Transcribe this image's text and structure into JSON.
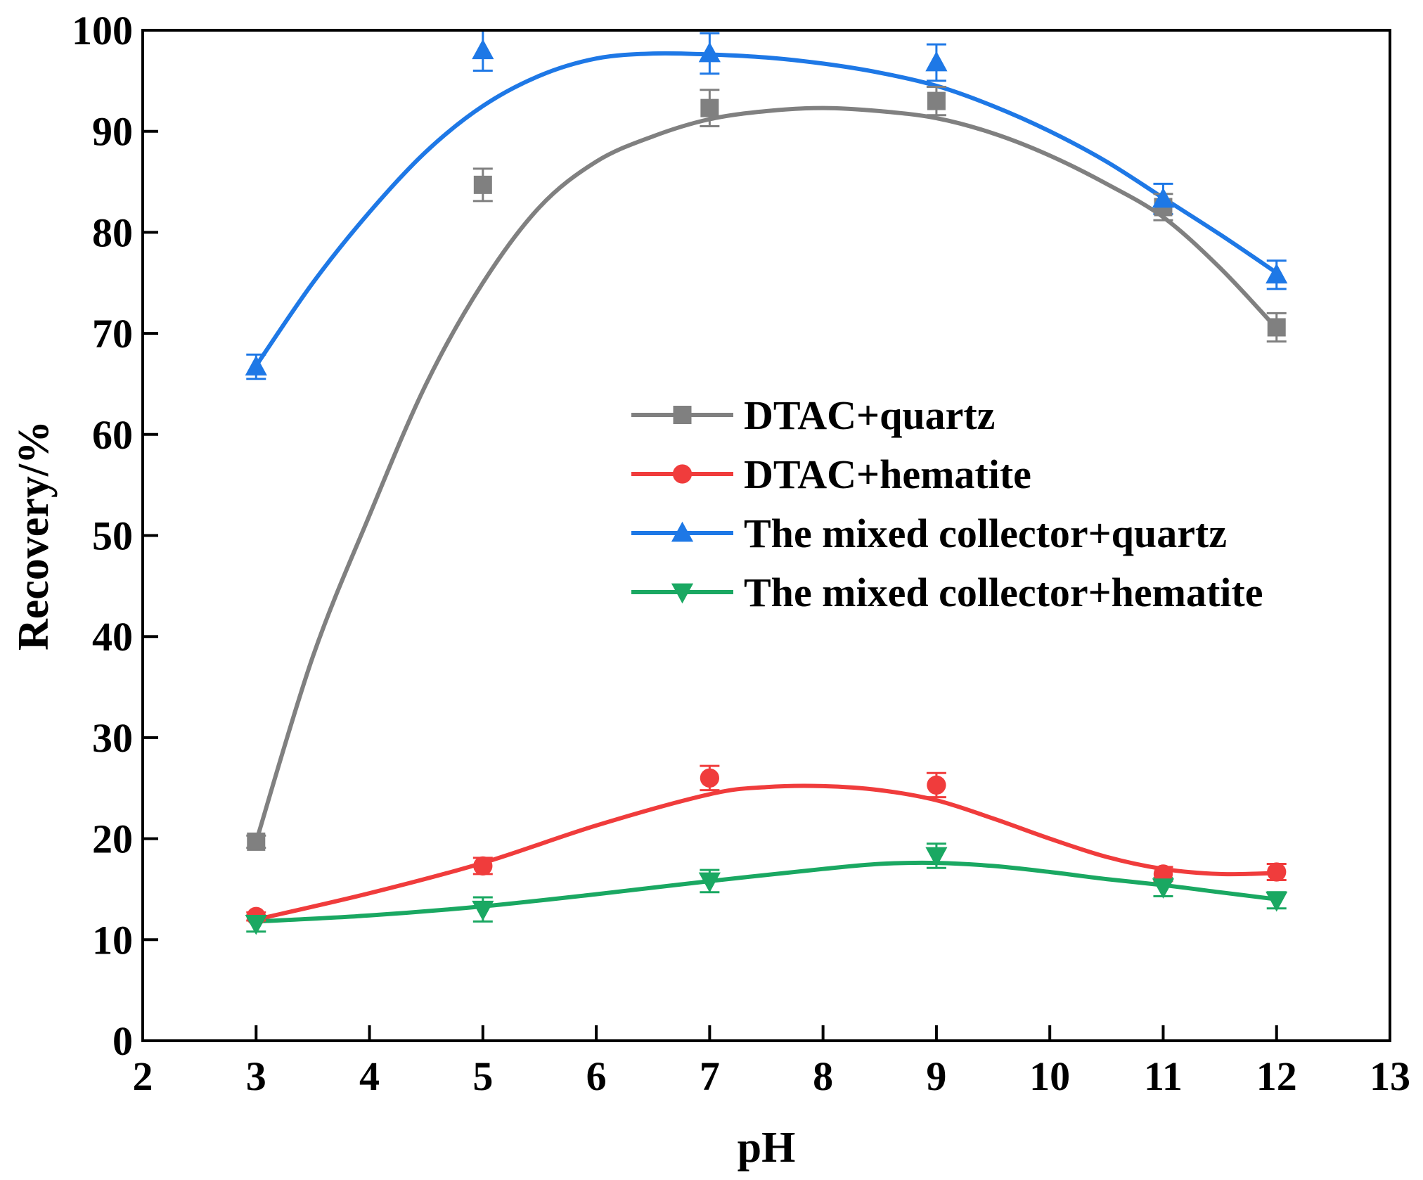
{
  "chart_data": {
    "type": "line",
    "xlabel": "pH",
    "ylabel": "Recovery/%",
    "xlim": [
      2,
      13
    ],
    "ylim": [
      0,
      100
    ],
    "xticks": [
      2,
      3,
      4,
      5,
      6,
      7,
      8,
      9,
      10,
      11,
      12,
      13
    ],
    "yticks": [
      0,
      10,
      20,
      30,
      40,
      50,
      60,
      70,
      80,
      90,
      100
    ],
    "legend_position": "center-right",
    "series": [
      {
        "name": "DTAC+quartz",
        "color": "#808080",
        "marker": "square",
        "x": [
          3,
          5,
          7,
          9,
          11,
          12
        ],
        "y": [
          19.7,
          84.7,
          92.3,
          93.0,
          82.5,
          70.6
        ],
        "err": [
          0.6,
          1.6,
          1.8,
          1.4,
          1.3,
          1.4
        ],
        "fit": [
          [
            3,
            19.7
          ],
          [
            3.5,
            38
          ],
          [
            4,
            52
          ],
          [
            4.5,
            65
          ],
          [
            5,
            75
          ],
          [
            5.5,
            82.5
          ],
          [
            6,
            87
          ],
          [
            6.5,
            89.5
          ],
          [
            7,
            91.2
          ],
          [
            7.5,
            92
          ],
          [
            8,
            92.3
          ],
          [
            8.5,
            92
          ],
          [
            9,
            91.3
          ],
          [
            9.5,
            89.8
          ],
          [
            10,
            87.6
          ],
          [
            10.5,
            84.8
          ],
          [
            11,
            81.5
          ],
          [
            11.5,
            76.5
          ],
          [
            12,
            70.5
          ]
        ]
      },
      {
        "name": "DTAC+hematite",
        "color": "#f03c3c",
        "marker": "circle",
        "x": [
          3,
          5,
          7,
          9,
          11,
          12
        ],
        "y": [
          12.3,
          17.3,
          26.0,
          25.3,
          16.5,
          16.7
        ],
        "err": [
          0.4,
          0.8,
          1.2,
          1.2,
          0.7,
          0.8
        ],
        "fit": [
          [
            3,
            12
          ],
          [
            4,
            14.6
          ],
          [
            5,
            17.6
          ],
          [
            6,
            21.3
          ],
          [
            7,
            24.4
          ],
          [
            7.5,
            25.1
          ],
          [
            8,
            25.2
          ],
          [
            8.5,
            24.8
          ],
          [
            9,
            23.8
          ],
          [
            9.5,
            22
          ],
          [
            10,
            20
          ],
          [
            10.5,
            18.2
          ],
          [
            11,
            17
          ],
          [
            11.5,
            16.5
          ],
          [
            12,
            16.6
          ]
        ]
      },
      {
        "name": "The mixed collector+quartz",
        "color": "#1e78e6",
        "marker": "triangle-up",
        "x": [
          3,
          5,
          7,
          9,
          11,
          12
        ],
        "y": [
          66.7,
          98.0,
          97.7,
          96.8,
          83.3,
          75.8
        ],
        "err": [
          1.2,
          2.0,
          2.0,
          1.8,
          1.5,
          1.4
        ],
        "fit": [
          [
            3,
            66.8
          ],
          [
            3.5,
            75
          ],
          [
            4,
            82
          ],
          [
            4.5,
            88
          ],
          [
            5,
            92.5
          ],
          [
            5.5,
            95.5
          ],
          [
            6,
            97.2
          ],
          [
            6.5,
            97.7
          ],
          [
            7,
            97.6
          ],
          [
            7.5,
            97.3
          ],
          [
            8,
            96.7
          ],
          [
            8.5,
            95.8
          ],
          [
            9,
            94.5
          ],
          [
            9.5,
            92.5
          ],
          [
            10,
            90
          ],
          [
            10.5,
            87
          ],
          [
            11,
            83.4
          ],
          [
            11.5,
            79.8
          ],
          [
            12,
            76
          ]
        ]
      },
      {
        "name": "The mixed collector+hematite",
        "color": "#1aa862",
        "marker": "triangle-down",
        "x": [
          3,
          5,
          7,
          9,
          11,
          12
        ],
        "y": [
          11.6,
          13.0,
          15.8,
          18.3,
          15.2,
          13.9
        ],
        "err": [
          0.8,
          1.2,
          1.1,
          1.2,
          0.9,
          0.8
        ],
        "fit": [
          [
            3,
            11.8
          ],
          [
            4,
            12.4
          ],
          [
            5,
            13.3
          ],
          [
            6,
            14.5
          ],
          [
            7,
            15.8
          ],
          [
            8,
            17
          ],
          [
            8.5,
            17.5
          ],
          [
            9,
            17.6
          ],
          [
            9.5,
            17.3
          ],
          [
            10,
            16.7
          ],
          [
            10.5,
            16
          ],
          [
            11,
            15.4
          ],
          [
            11.5,
            14.7
          ],
          [
            12,
            14
          ]
        ]
      }
    ]
  }
}
